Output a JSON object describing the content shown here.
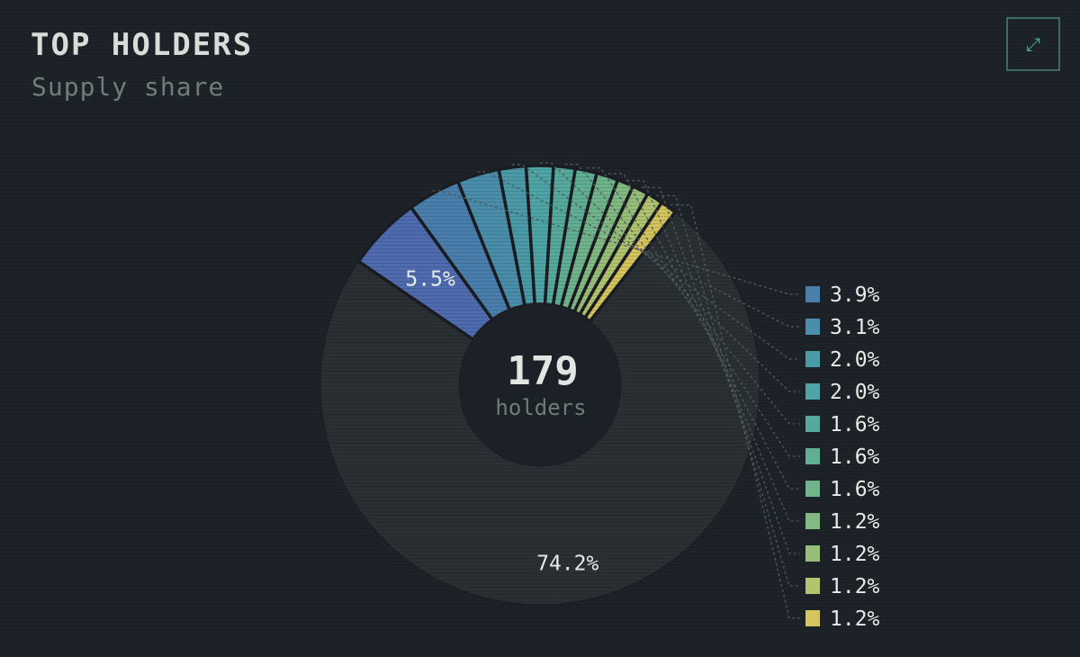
{
  "header": {
    "title": "TOP HOLDERS",
    "subtitle": "Supply share"
  },
  "toolbar": {
    "expand_icon": "expand-icon"
  },
  "center": {
    "count": "179",
    "label": "holders"
  },
  "colors": {
    "background": "#1c2027",
    "other_slice": "#2a3034",
    "accent": "#4fb3a5"
  },
  "chart_data": {
    "type": "pie",
    "title": "TOP HOLDERS",
    "subtitle": "Supply share",
    "donut": true,
    "center_text": "179",
    "center_subtext": "holders",
    "categories": [
      "",
      "",
      "",
      "",
      "",
      "",
      "",
      "",
      "",
      "",
      "",
      "",
      ""
    ],
    "values": [
      74.2,
      5.5,
      3.9,
      3.1,
      2.0,
      2.0,
      1.6,
      1.6,
      1.6,
      1.2,
      1.2,
      1.2,
      1.2
    ],
    "labels": [
      "74.2%",
      "5.5%",
      "3.9%",
      "3.1%",
      "2.0%",
      "2.0%",
      "1.6%",
      "1.6%",
      "1.6%",
      "1.2%",
      "1.2%",
      "1.2%",
      "1.2%"
    ],
    "colors": [
      "#2a3034",
      "#4f6cb0",
      "#4a7fad",
      "#4a8eab",
      "#4b9aa8",
      "#4fa5a6",
      "#56aa9d",
      "#61af95",
      "#70b48c",
      "#83ba84",
      "#98bf79",
      "#b1c46e",
      "#d6c45c"
    ],
    "legend_position": "right",
    "legend_items": [
      "3.9%",
      "3.1%",
      "2.0%",
      "2.0%",
      "1.6%",
      "1.6%",
      "1.6%",
      "1.2%",
      "1.2%",
      "1.2%",
      "1.2%"
    ]
  }
}
